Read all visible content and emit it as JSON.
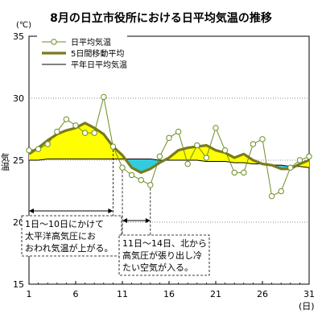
{
  "chart_data": {
    "type": "line",
    "title": "8月の日立市役所における日平均気温の推移",
    "y_unit": "(℃)",
    "x_unit": "(日)",
    "ylabel": "気温",
    "ylim": [
      15,
      35
    ],
    "y_ticks": [
      15,
      20,
      25,
      30,
      35
    ],
    "xlim": [
      1,
      31
    ],
    "x_ticks": [
      1,
      6,
      11,
      16,
      21,
      26,
      31
    ],
    "grid": "horizontal-dotted",
    "legend_position": "top-left",
    "x": [
      1,
      2,
      3,
      4,
      5,
      6,
      7,
      8,
      9,
      10,
      11,
      12,
      13,
      14,
      15,
      16,
      17,
      18,
      19,
      20,
      21,
      22,
      23,
      24,
      25,
      26,
      27,
      28,
      29,
      30,
      31
    ],
    "series": [
      {
        "name": "日平均気温",
        "color": "#6b8e23",
        "marker": "circle-open",
        "values": [
          25.8,
          25.9,
          26.3,
          27.3,
          28.3,
          27.8,
          27.2,
          27.2,
          30.1,
          26.1,
          24.4,
          23.8,
          23.4,
          23.0,
          25.3,
          26.8,
          27.3,
          24.7,
          26.2,
          25.2,
          27.6,
          25.8,
          24.0,
          24.0,
          26.3,
          26.7,
          22.1,
          22.5,
          24.4,
          25.0,
          25.3
        ]
      },
      {
        "name": "5日間移動平均",
        "color": "#7a7a1e",
        "values": [
          25.5,
          26.0,
          26.6,
          27.1,
          27.4,
          27.6,
          28.0,
          27.6,
          27.1,
          26.1,
          25.4,
          24.4,
          24.0,
          24.3,
          24.8,
          25.2,
          25.8,
          26.0,
          26.1,
          26.2,
          25.8,
          25.6,
          25.2,
          25.5,
          25.0,
          24.7,
          24.6,
          24.3,
          24.3,
          24.7,
          25.0
        ]
      },
      {
        "name": "平年日平均気温",
        "color": "#000000",
        "values": [
          25.0,
          25.0,
          25.1,
          25.1,
          25.1,
          25.1,
          25.1,
          25.1,
          25.1,
          25.1,
          25.1,
          25.1,
          25.1,
          25.1,
          25.0,
          25.0,
          25.0,
          25.0,
          25.0,
          24.9,
          24.9,
          24.9,
          24.8,
          24.8,
          24.7,
          24.7,
          24.6,
          24.6,
          24.5,
          24.5,
          24.4
        ]
      }
    ],
    "fill_above_color": "#ffff00",
    "fill_below_color": "#33ccdd",
    "annotations": [
      {
        "day_range": [
          1,
          10
        ],
        "lines": [
          "1日～10日にかけて",
          "太平洋高気圧にお",
          "おわれ気温が上がる。"
        ]
      },
      {
        "day_range": [
          11,
          14
        ],
        "lines": [
          "11日～14日、北から",
          "高気圧が張り出し冷",
          "たい空気が入る。"
        ]
      }
    ]
  }
}
